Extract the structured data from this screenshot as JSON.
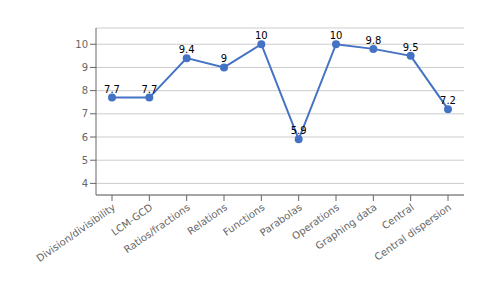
{
  "chart_data": {
    "type": "line",
    "categories": [
      "Division/divisibility",
      "LCM-GCD",
      "Ratios/fractions",
      "Relations",
      "Functions",
      "Parabolas",
      "Operations",
      "Graphing data",
      "Central",
      "Central dispersion"
    ],
    "values": [
      7.7,
      7.7,
      9.4,
      9.0,
      10.0,
      5.9,
      10.0,
      9.8,
      9.5,
      7.2
    ],
    "color": "#4472c4",
    "marker": "circle",
    "ylim": [
      3.5,
      10.7
    ],
    "yticks": [
      4,
      5,
      6,
      7,
      8,
      9,
      10
    ],
    "grid": true,
    "data_labels": true
  }
}
